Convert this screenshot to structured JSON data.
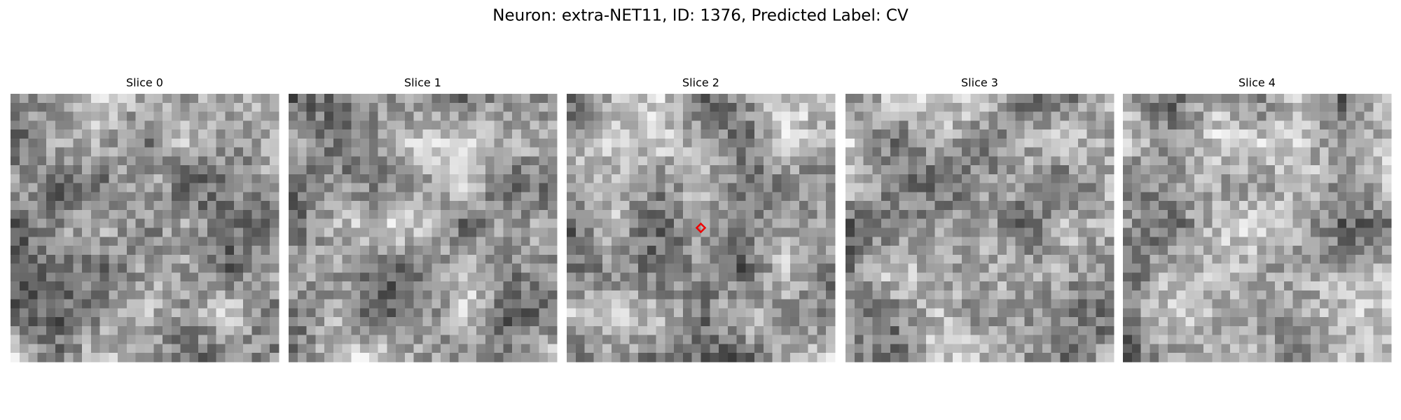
{
  "title": "Neuron: extra-NET11, ID: 1376, Predicted Label: CV",
  "panels": [
    {
      "title": "Slice 0"
    },
    {
      "title": "Slice 1"
    },
    {
      "title": "Slice 2"
    },
    {
      "title": "Slice 3"
    },
    {
      "title": "Slice 4"
    }
  ]
}
